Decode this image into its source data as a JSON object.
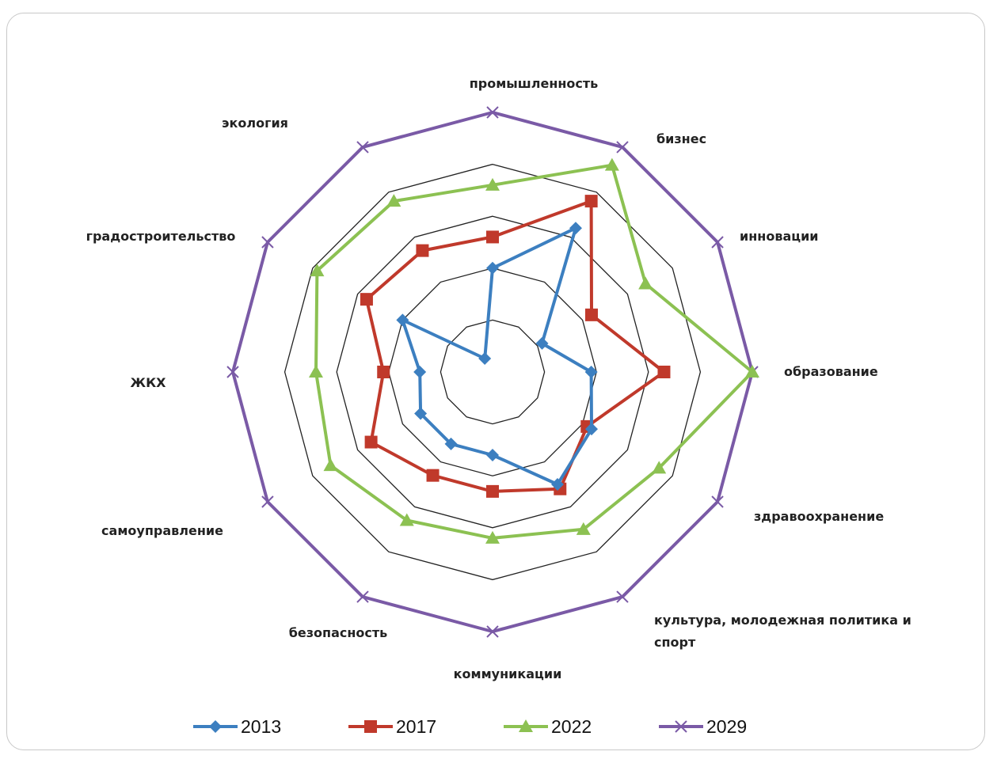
{
  "chart_data": {
    "type": "radar",
    "title": "",
    "categories": [
      "промышленность",
      "бизнес",
      "инновации",
      "образование",
      "здравоохранение",
      "культура, молодежная политика и спорт",
      "коммуникации",
      "безопасность",
      "самоуправление",
      "ЖКХ",
      "градостроительство",
      "экология"
    ],
    "rlim": [
      0,
      5
    ],
    "grid_levels": 5,
    "grid": true,
    "legend_position": "bottom",
    "series": [
      {
        "name": "2013",
        "color": "#3c7fc0",
        "marker": "diamond",
        "values": [
          2.0,
          3.2,
          1.1,
          1.9,
          2.2,
          2.5,
          1.6,
          1.6,
          1.6,
          1.4,
          2.0,
          0.3
        ]
      },
      {
        "name": "2017",
        "color": "#c0392b",
        "marker": "square",
        "values": [
          2.6,
          3.8,
          2.2,
          3.3,
          2.1,
          2.6,
          2.3,
          2.3,
          2.7,
          2.1,
          2.8,
          2.7
        ]
      },
      {
        "name": "2022",
        "color": "#8cc152",
        "marker": "triangle",
        "values": [
          3.6,
          4.6,
          3.4,
          5.0,
          3.7,
          3.5,
          3.2,
          3.3,
          3.6,
          3.4,
          3.9,
          3.8
        ]
      },
      {
        "name": "2029",
        "color": "#7a5aa6",
        "marker": "x",
        "values": [
          5.0,
          5.0,
          5.0,
          5.0,
          5.0,
          5.0,
          5.0,
          5.0,
          5.0,
          5.0,
          5.0,
          5.0
        ]
      }
    ]
  }
}
